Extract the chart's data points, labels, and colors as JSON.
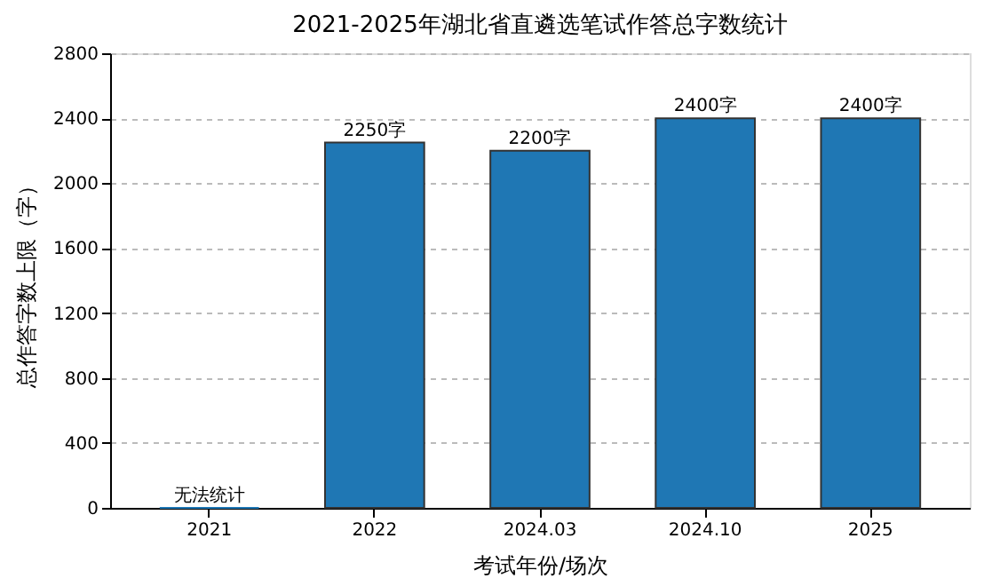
{
  "chart_data": {
    "type": "bar",
    "title": "2021-2025年湖北省直遴选笔试作答总字数统计",
    "xlabel": "考试年份/场次",
    "ylabel": "总作答字数上限（字）",
    "categories": [
      "2021",
      "2022",
      "2024.03",
      "2024.10",
      "2025"
    ],
    "values": [
      0,
      2250,
      2200,
      2400,
      2400
    ],
    "value_labels": [
      "无法统计",
      "2250字",
      "2200字",
      "2400字",
      "2400字"
    ],
    "color": "#1f77b4",
    "ylim": [
      0,
      2800
    ],
    "yticks": [
      0,
      400,
      800,
      1200,
      1600,
      2000,
      2400,
      2800
    ],
    "grid": "y",
    "line_style": "dashed"
  }
}
